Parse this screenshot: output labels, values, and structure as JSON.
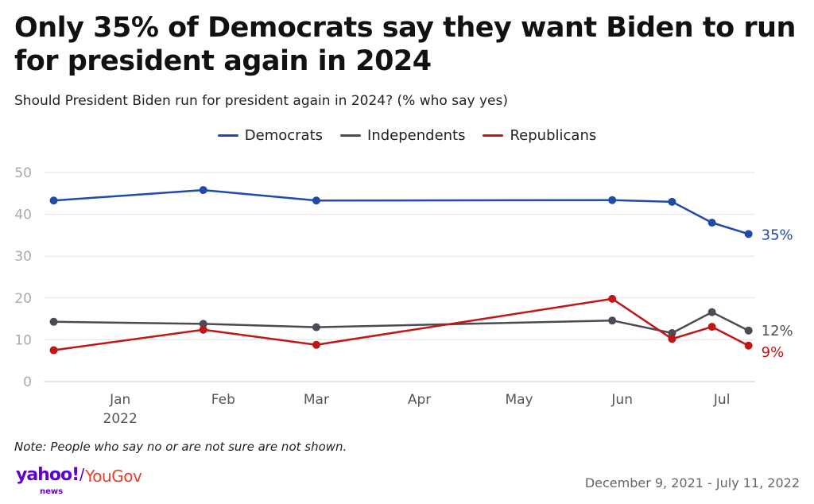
{
  "header": {
    "title": "Only 35% of Democrats say they want Biden to run for president again in 2024",
    "subtitle": "Should President Biden run for president again in 2024? (% who say yes)"
  },
  "footer": {
    "note": "Note: People who say no or are not sure are not shown.",
    "logo_primary": "yahoo!",
    "logo_sub": "news",
    "logo_separator": "/",
    "logo_partner": "YouGov",
    "date_range": "December 9, 2021 - July 11, 2022"
  },
  "chart_data": {
    "type": "line",
    "title": "Only 35% of Democrats say they want Biden to run for president again in 2024",
    "subtitle": "Should President Biden run for president again in 2024? (% who say yes)",
    "xlabel": "",
    "ylabel": "",
    "ylim": [
      0,
      50
    ],
    "yticks": [
      0,
      10,
      20,
      30,
      40,
      50
    ],
    "grid": true,
    "legend_position": "top-center",
    "x_domain_days": [
      0,
      214
    ],
    "x_ticks": [
      {
        "label": "Jan",
        "sublabel": "2022",
        "day": 23
      },
      {
        "label": "Feb",
        "sublabel": "",
        "day": 54
      },
      {
        "label": "Mar",
        "sublabel": "",
        "day": 82
      },
      {
        "label": "Apr",
        "sublabel": "",
        "day": 113
      },
      {
        "label": "May",
        "sublabel": "",
        "day": 143
      },
      {
        "label": "Jun",
        "sublabel": "",
        "day": 174
      },
      {
        "label": "Jul",
        "sublabel": "",
        "day": 204
      }
    ],
    "x_days": [
      3,
      48,
      82,
      171,
      189,
      201,
      212
    ],
    "series": [
      {
        "name": "Democrats",
        "color": "#1f4aa8",
        "values": [
          43.3,
          45.8,
          43.3,
          43.4,
          43.0,
          38.0,
          35.3
        ],
        "end_label": "35%"
      },
      {
        "name": "Independents",
        "color": "#4b4a55",
        "values": [
          14.3,
          13.8,
          13.0,
          14.6,
          11.6,
          16.6,
          12.2
        ],
        "end_label": "12%"
      },
      {
        "name": "Republicans",
        "color": "#c21616",
        "values": [
          7.5,
          12.4,
          8.8,
          19.8,
          10.2,
          13.1,
          8.6
        ],
        "end_label": "9%"
      }
    ]
  }
}
